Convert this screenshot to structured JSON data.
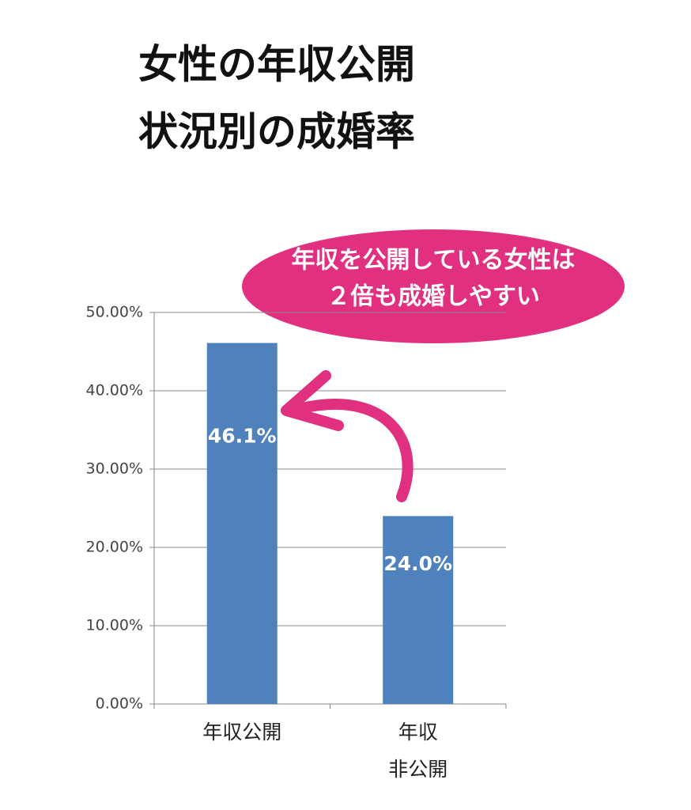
{
  "chart_data": {
    "type": "bar",
    "title": [
      "女性の年収公開",
      "状況別の成婚率"
    ],
    "annotation": [
      "年収を公開している女性は",
      "２倍も成婚しやすい"
    ],
    "categories": [
      [
        "年収公開"
      ],
      [
        "年収",
        "非公開"
      ]
    ],
    "values": [
      46.1,
      24.0
    ],
    "value_labels": [
      "46.1%",
      "24.0%"
    ],
    "color": "#4f81bd",
    "ylim": [
      0,
      50
    ],
    "yticks": [
      {
        "value": 0,
        "label": "0.00%"
      },
      {
        "value": 10,
        "label": "10.00%"
      },
      {
        "value": 20,
        "label": "20.00%"
      },
      {
        "value": 30,
        "label": "30.00%"
      },
      {
        "value": 40,
        "label": "40.00%"
      },
      {
        "value": 50,
        "label": "50.00%"
      }
    ],
    "grid": true
  }
}
